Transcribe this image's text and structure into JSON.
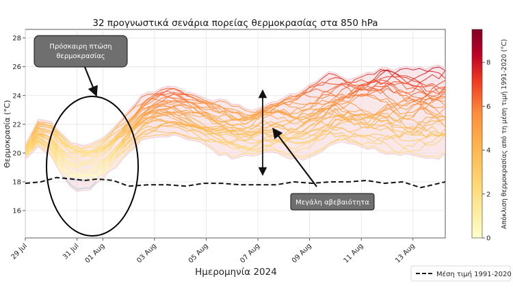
{
  "chart_data": {
    "type": "line",
    "title": "32 προγνωστικά σενάρια πορείας θερμοκρασίας στα 850 hPa",
    "xlabel": "Ημερομηνία 2024",
    "ylabel": "Θερμοκρασία (°C)",
    "ylim": [
      14.1,
      28.6
    ],
    "xlim": [
      "2024-07-29",
      "2024-08-14T06:00"
    ],
    "grid": true,
    "x_ticks": [
      "29 Jul",
      "31 Jul",
      "01 Aug",
      "03 Aug",
      "05 Aug",
      "07 Aug",
      "09 Aug",
      "11 Aug",
      "13 Aug"
    ],
    "y_ticks": [
      16,
      18,
      20,
      22,
      24,
      26,
      28
    ],
    "colorbar": {
      "label": "Απόκλιση θερμοκρασίας από τη μέση τιμή 1991-2020 (°C)",
      "range": [
        0,
        9.5
      ],
      "ticks": [
        0,
        2,
        4,
        6,
        8
      ],
      "colormap": "YlOrRd"
    },
    "envelope_color": "#f6d4d9",
    "ensemble_members": 32,
    "ensemble_mean_anchor": {
      "days": [
        "29 Jul",
        "29.5 Jul",
        "30 Jul",
        "30.4 Jul",
        "30.8 Jul",
        "31.2 Jul",
        "31.6 Jul",
        "01 Aug",
        "01.4 Aug",
        "02 Aug",
        "02.6 Aug",
        "03.2 Aug",
        "03.8 Aug",
        "04.5 Aug",
        "05.2 Aug",
        "06 Aug",
        "06.6 Aug",
        "07.2 Aug",
        "07.8 Aug",
        "08.4 Aug",
        "09 Aug",
        "09.6 Aug",
        "10.2 Aug",
        "10.8 Aug",
        "11.4 Aug",
        "12 Aug",
        "12.6 Aug",
        "13.2 Aug",
        "13.8 Aug",
        "14.25 Aug"
      ],
      "values": [
        20.1,
        21.4,
        21.0,
        19.9,
        19.3,
        19.1,
        19.2,
        19.6,
        20.3,
        21.5,
        22.6,
        23.0,
        23.0,
        22.5,
        22.0,
        21.6,
        21.4,
        21.9,
        22.1,
        22.0,
        22.3,
        22.7,
        22.9,
        22.9,
        23.0,
        23.2,
        22.9,
        23.0,
        23.0,
        23.0
      ]
    },
    "ensemble_spread_anchor": [
      0.25,
      0.5,
      0.7,
      0.95,
      1.1,
      1.15,
      1.15,
      1.1,
      1.0,
      0.9,
      1.0,
      1.05,
      1.1,
      1.1,
      1.15,
      1.2,
      1.2,
      1.25,
      1.35,
      1.5,
      1.65,
      1.75,
      1.8,
      1.85,
      1.9,
      1.95,
      2.0,
      2.05,
      2.1,
      2.1
    ],
    "climatology": {
      "name": "Μέση τιμή 1991-2020",
      "style": "dashed",
      "color": "#111111",
      "days": [
        "29 Jul",
        "29.6 Jul",
        "30.2 Jul",
        "30.8 Jul",
        "31.3 Jul",
        "31.8 Jul",
        "01.4 Aug",
        "02 Aug",
        "02.8 Aug",
        "03.5 Aug",
        "04.2 Aug",
        "04.9 Aug",
        "05.6 Aug",
        "06.3 Aug",
        "07 Aug",
        "07.7 Aug",
        "08.4 Aug",
        "09.1 Aug",
        "09.8 Aug",
        "10.5 Aug",
        "11.2 Aug",
        "11.9 Aug",
        "12.6 Aug",
        "13.3 Aug",
        "14.25 Aug"
      ],
      "values": [
        17.9,
        18.0,
        18.3,
        18.2,
        18.1,
        18.2,
        18.1,
        17.7,
        17.8,
        17.8,
        17.7,
        17.9,
        17.9,
        17.8,
        17.8,
        17.8,
        18.0,
        17.9,
        18.0,
        18.0,
        18.1,
        17.9,
        18.0,
        17.6,
        18.0
      ]
    },
    "annotations": [
      {
        "text": "Πρόσκαιρη πτώση θερμοκρασίας",
        "lines": [
          "Πρόσκαιρη πτώση",
          "θερμοκρασίας"
        ],
        "target": "ellipse around 29 Jul–01 Aug dip"
      },
      {
        "text": "Μεγάλη αβεβαιότητα",
        "lines": [
          "Μεγάλη αβεβαιότητα"
        ],
        "target": "vertical spread arrow at 07 Aug"
      }
    ],
    "legend": {
      "placement": "bottom-right",
      "entries": [
        "Μέση τιμή 1991-2020"
      ]
    }
  }
}
